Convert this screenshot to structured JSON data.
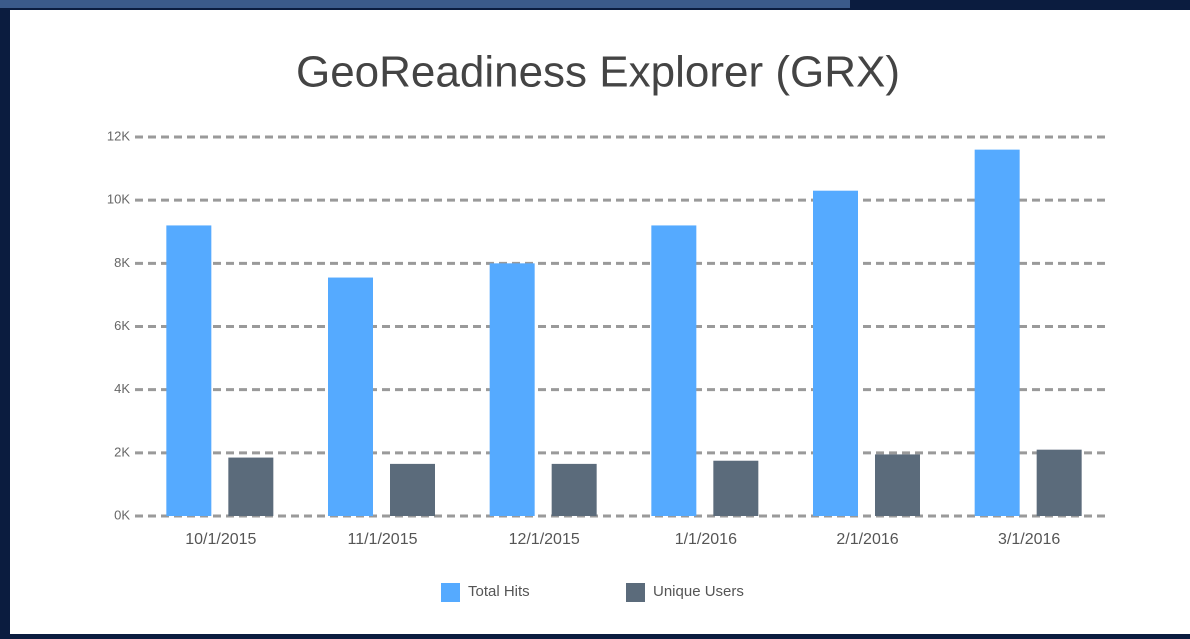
{
  "chart_data": {
    "type": "bar",
    "title": "GeoReadiness Explorer (GRX)",
    "categories": [
      "10/1/2015",
      "11/1/2015",
      "12/1/2015",
      "1/1/2016",
      "2/1/2016",
      "3/1/2016"
    ],
    "series": [
      {
        "name": "Total Hits",
        "color": "#55aaff",
        "values": [
          9200,
          7550,
          8000,
          9200,
          10300,
          11600
        ]
      },
      {
        "name": "Unique Users",
        "color": "#5b6b7b",
        "values": [
          1850,
          1650,
          1650,
          1750,
          1950,
          2100
        ]
      }
    ],
    "ylim": [
      0,
      12000
    ],
    "yticks": [
      {
        "value": 0,
        "label": "0K"
      },
      {
        "value": 2000,
        "label": "2K"
      },
      {
        "value": 4000,
        "label": "4K"
      },
      {
        "value": 6000,
        "label": "6K"
      },
      {
        "value": 8000,
        "label": "8K"
      },
      {
        "value": 10000,
        "label": "10K"
      },
      {
        "value": 12000,
        "label": "12K"
      }
    ],
    "grid": true,
    "legend": "bottom"
  }
}
